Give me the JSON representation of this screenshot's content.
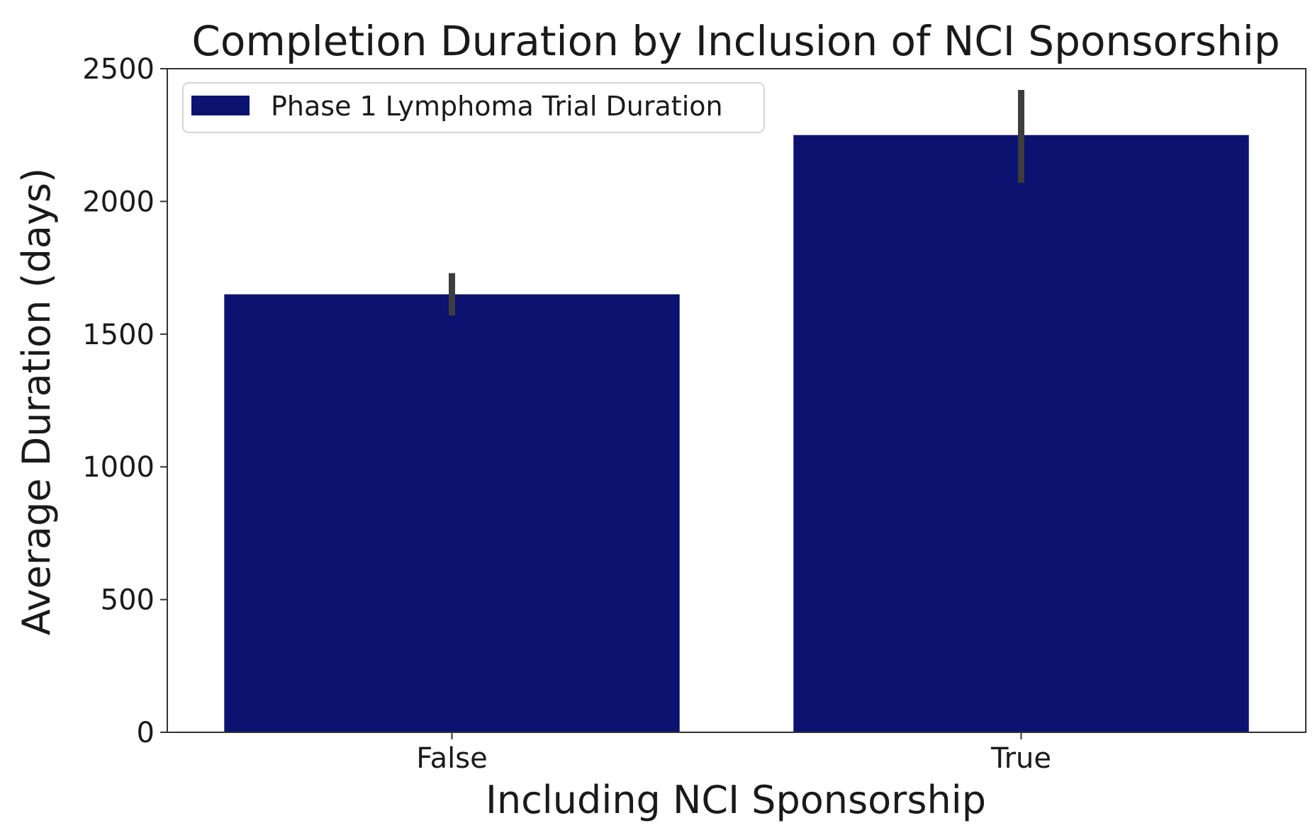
{
  "chart_data": {
    "type": "bar",
    "title": "Completion Duration by Inclusion of NCI Sponsorship",
    "xlabel": "Including NCI Sponsorship",
    "ylabel": "Average Duration (days)",
    "categories": [
      "False",
      "True"
    ],
    "series": [
      {
        "name": "Phase 1 Lymphoma Trial Duration",
        "values": [
          1650,
          2250
        ],
        "error_low": [
          1570,
          2070
        ],
        "error_high": [
          1730,
          2420
        ],
        "color": "#0b1270"
      }
    ],
    "ylim": [
      0,
      2500
    ],
    "yticks": [
      0,
      500,
      1000,
      1500,
      2000,
      2500
    ],
    "grid": false,
    "legend_position": "top-left",
    "errorbar_color": "#3d3d3d"
  }
}
